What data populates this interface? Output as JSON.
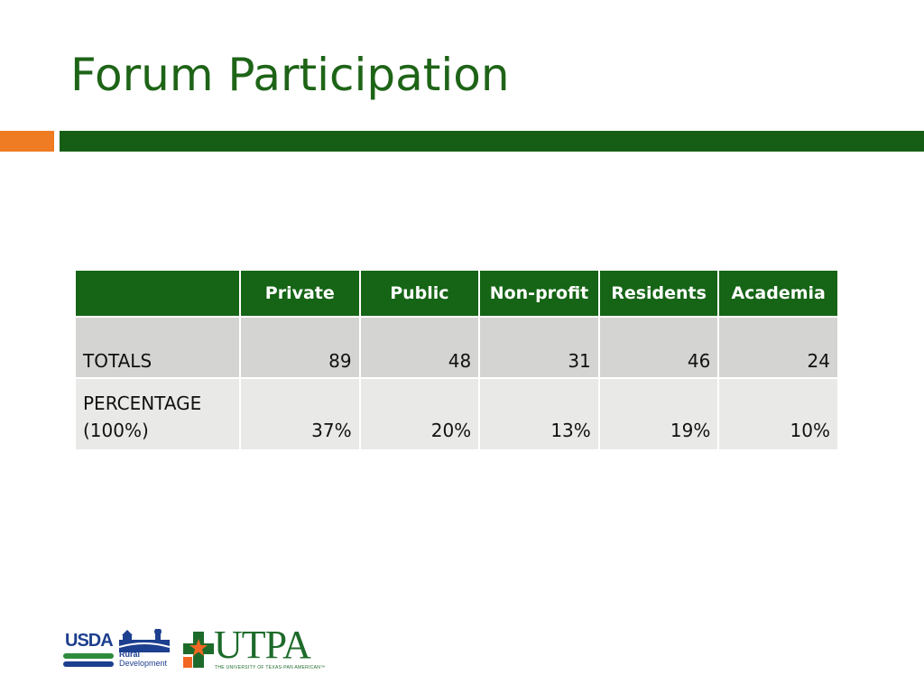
{
  "slide": {
    "title": "Forum Participation"
  },
  "table": {
    "columns": [
      "",
      "Private",
      "Public",
      "Non-profit",
      "Residents",
      "Academia"
    ],
    "rows": [
      {
        "label_lines": [
          "TOTALS"
        ],
        "values": [
          "89",
          "48",
          "31",
          "46",
          "24"
        ]
      },
      {
        "label_lines": [
          "PERCENTAGE",
          "(100%)"
        ],
        "values": [
          "37%",
          "20%",
          "13%",
          "19%",
          "10%"
        ]
      }
    ]
  },
  "logos": {
    "usda": "USDA",
    "rural_development": [
      "Rural",
      "Development"
    ],
    "utpa": "UTPA",
    "utpa_tagline": "THE UNIVERSITY OF TEXAS-PAN AMERICAN™"
  },
  "colors": {
    "title": "#1e6417",
    "green_bar": "#165e16",
    "orange_bar": "#ef7b22",
    "header_fill": "#166416",
    "row_totals_fill": "#d4d5d3",
    "row_percent_fill": "#e9eae8",
    "usda_blue": "#1d3f8f",
    "usda_green": "#2e8b3c",
    "utpa_green": "#1d6b2a",
    "utpa_orange": "#f26722"
  }
}
